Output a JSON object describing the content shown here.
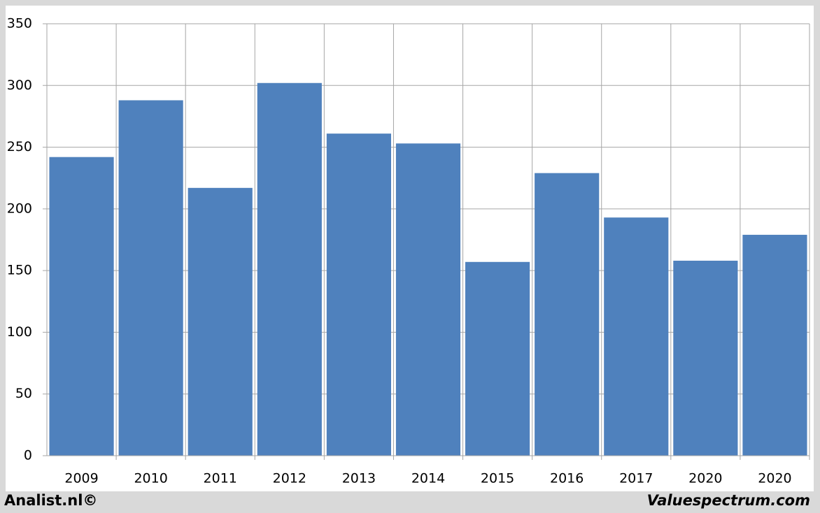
{
  "chart_data": {
    "type": "bar",
    "categories": [
      "2009",
      "2010",
      "2011",
      "2012",
      "2013",
      "2014",
      "2015",
      "2016",
      "2017",
      "2020",
      "2020"
    ],
    "values": [
      242,
      288,
      217,
      302,
      261,
      253,
      157,
      229,
      193,
      158,
      179
    ],
    "color": "#4f81bd",
    "ylim": [
      0,
      350
    ],
    "yticks": [
      0,
      50,
      100,
      150,
      200,
      250,
      300,
      350
    ],
    "grid": true
  },
  "footer": {
    "left": "Analist.nl©",
    "right": "Valuespectrum.com"
  }
}
